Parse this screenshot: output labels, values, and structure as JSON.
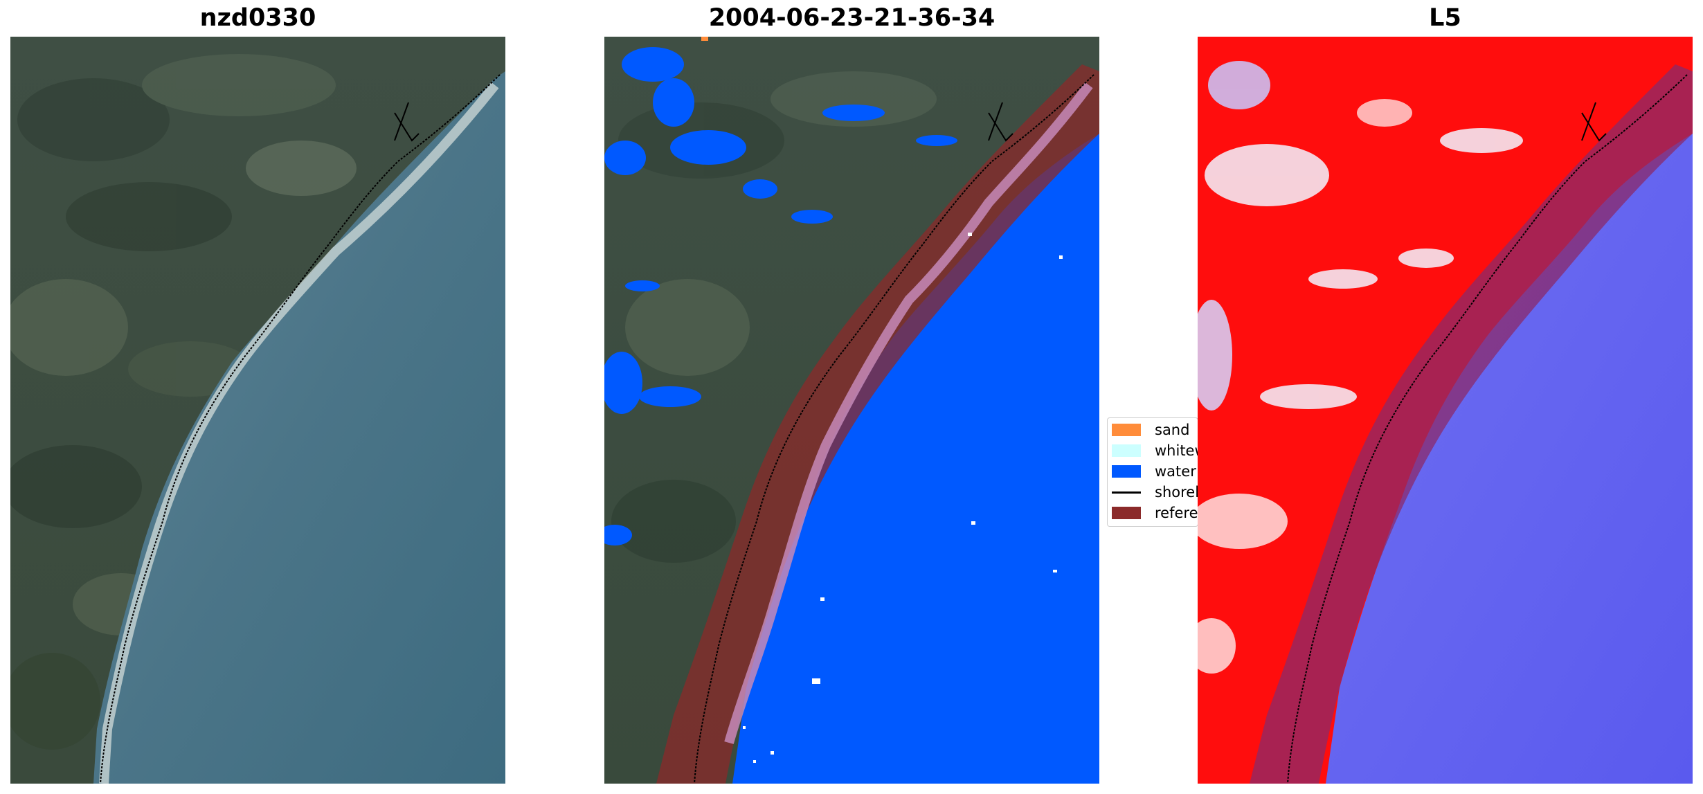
{
  "panels": [
    {
      "title": "nzd0330"
    },
    {
      "title": "2004-06-23-21-36-34"
    },
    {
      "title": "L5"
    }
  ],
  "legend": {
    "items": [
      {
        "label": "sand",
        "color": "#ff8c3a",
        "kind": "patch"
      },
      {
        "label": "whitewater",
        "color": "#ccffff",
        "kind": "patch"
      },
      {
        "label": "water",
        "color": "#0059ff",
        "kind": "patch"
      },
      {
        "label": "shoreline",
        "color": "#000000",
        "kind": "line"
      },
      {
        "label": "reference shoreline buffer",
        "color": "#8b2a2a",
        "kind": "patch"
      }
    ]
  },
  "colors": {
    "water_class": "#0059ff",
    "buffer": "#8b2a2a",
    "index_positive": "#ff0000",
    "index_negative": "#0000ff"
  }
}
